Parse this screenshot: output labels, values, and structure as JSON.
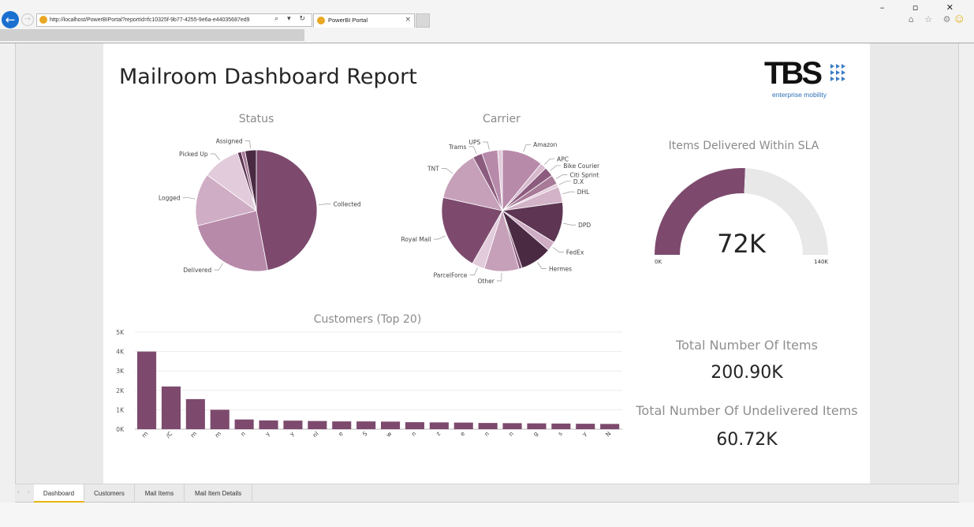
{
  "browser": {
    "url": "http://localhost/PowerBIPortal?reportId=fc10325f-9b77-4255-9e6a-e44035687ed9",
    "tab_title": "PowerBI Portal",
    "tab_close": "×",
    "window_controls": "– ▫ ✕",
    "toolbar_icons": "⌂ ☆ ⚙",
    "smiley": "☺",
    "address_icons": "⌕ ▾ ↻"
  },
  "report": {
    "title": "Mailroom Dashboard Report",
    "logo": {
      "text": "TBS",
      "subtitle": "enterprise mobility"
    }
  },
  "status_chart": {
    "title": "Status",
    "slices": [
      {
        "label": "Collected",
        "value": 47,
        "color": "#7d4a6e"
      },
      {
        "label": "Delivered",
        "value": 24,
        "color": "#b88aaa"
      },
      {
        "label": "Logged",
        "value": 14,
        "color": "#cfadc4"
      },
      {
        "label": "Picked Up",
        "value": 10,
        "color": "#e2cbdb"
      },
      {
        "label": "",
        "value": 1,
        "color": "#5e3653"
      },
      {
        "label": "",
        "value": 1,
        "color": "#a87a98"
      },
      {
        "label": "Assigned",
        "value": 3,
        "color": "#4a2a42"
      }
    ]
  },
  "carrier_chart": {
    "title": "Carrier",
    "slices": [
      {
        "label": "Amazon",
        "value": 13,
        "color": "#b88aaa"
      },
      {
        "label": "APC",
        "value": 2,
        "color": "#d6b9cd"
      },
      {
        "label": "Bike Courier",
        "value": 3,
        "color": "#8c5c7e"
      },
      {
        "label": "Citi Sprint",
        "value": 3,
        "color": "#a87a98"
      },
      {
        "label": "D.X",
        "value": 1,
        "color": "#e2cbdb"
      },
      {
        "label": "DHL",
        "value": 5,
        "color": "#d2b3c8"
      },
      {
        "label": "DPD",
        "value": 13,
        "color": "#5e3653"
      },
      {
        "label": "FedEx",
        "value": 3,
        "color": "#cfadc4"
      },
      {
        "label": "Hermes",
        "value": 10,
        "color": "#4a2a42"
      },
      {
        "label": "",
        "value": 1,
        "color": "#8c5c7e"
      },
      {
        "label": "Other",
        "value": 11,
        "color": "#c6a0b9"
      },
      {
        "label": "ParcelForce",
        "value": 4,
        "color": "#e2cbdb"
      },
      {
        "label": "Royal Mail",
        "value": 24,
        "color": "#7d4a6e"
      },
      {
        "label": "TNT",
        "value": 16,
        "color": "#c6a0b9"
      },
      {
        "label": "Trams",
        "value": 3,
        "color": "#8c5c7e"
      },
      {
        "label": "UPS",
        "value": 5,
        "color": "#b88aaa"
      },
      {
        "label": "",
        "value": 1.5,
        "color": "#e2cbdb"
      }
    ]
  },
  "sla_gauge": {
    "title": "Items Delivered Within SLA",
    "value_label": "72K",
    "value": 72,
    "min": 0,
    "max": 140,
    "min_label": "0K",
    "max_label": "140K",
    "fill_color": "#7d4a6e",
    "track_color": "#e8e8e8"
  },
  "customers_chart": {
    "title": "Customers (Top 20)",
    "y_ticks": [
      "0K",
      "1K",
      "2K",
      "3K",
      "4K",
      "5K"
    ],
    "x_labels": [
      "m",
      "/C",
      "m",
      "m",
      "n",
      "y",
      "y",
      "nl",
      "e",
      "S",
      "w",
      "n",
      "z",
      "e",
      "n",
      "n",
      "g",
      "s",
      "y",
      "N"
    ],
    "values": [
      4.0,
      2.2,
      1.55,
      1.0,
      0.5,
      0.45,
      0.44,
      0.42,
      0.4,
      0.4,
      0.39,
      0.36,
      0.35,
      0.34,
      0.32,
      0.31,
      0.3,
      0.29,
      0.28,
      0.27
    ],
    "ylim": [
      0,
      5
    ],
    "bar_color": "#7d4a6e"
  },
  "kpis": {
    "total_label": "Total Number Of Items",
    "total_value": "200.90K",
    "undelivered_label": "Total Number Of Undelivered Items",
    "undelivered_value": "60.72K"
  },
  "page_tabs": {
    "nav": "‹ ›",
    "tabs": [
      "Dashboard",
      "Customers",
      "Mail Items",
      "Mail Item Details"
    ]
  }
}
